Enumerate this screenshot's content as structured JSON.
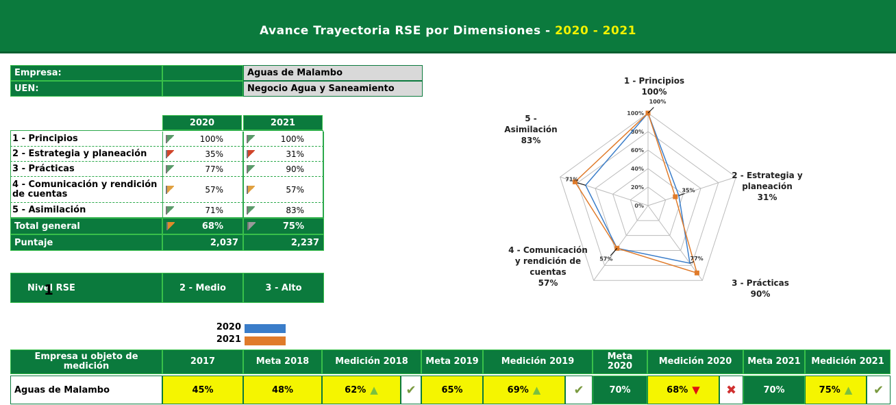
{
  "header": {
    "title": "Avance Trayectoria RSE por Dimensiones -",
    "years": "2020 - 2021"
  },
  "info": {
    "rows": [
      [
        "Empresa:",
        "Aguas de Malambo"
      ],
      [
        "UEN:",
        "Negocio Agua y Saneamiento"
      ]
    ]
  },
  "dimensions": {
    "columns": [
      "2020",
      "2021"
    ],
    "rows": [
      [
        "1 - Principios",
        "100%",
        "100%"
      ],
      [
        "2 - Estrategia y planeación",
        "35%",
        "31%"
      ],
      [
        "3 - Prácticas",
        "77%",
        "90%"
      ],
      [
        "4 - Comunicación y rendición de cuentas",
        "57%",
        "57%"
      ],
      [
        "5 - Asimilación",
        "71%",
        "83%"
      ]
    ],
    "total": [
      "Total general",
      "68%",
      "75%"
    ],
    "score": [
      "Puntaje",
      "2,037",
      "2,237"
    ]
  },
  "level": {
    "label": "Nivel RSE",
    "marker": "1",
    "values": [
      "2 - Medio",
      "3 - Alto"
    ]
  },
  "chart_data": {
    "type": "radar",
    "categories": [
      "1 - Principios",
      "2 - Estrategia y planeación",
      "3 - Prácticas",
      "4 - Comunicación y rendición de cuentas",
      "5 - Asimilación"
    ],
    "series": [
      {
        "name": "2020",
        "color": "#3a7dc9",
        "values": [
          100,
          35,
          77,
          57,
          71
        ],
        "value_labels": [
          "100%",
          "35%",
          "77%",
          "57%",
          "71%"
        ]
      },
      {
        "name": "2021",
        "color": "#e07b2a",
        "values": [
          100,
          31,
          90,
          57,
          83
        ],
        "value_labels": [
          "100%",
          "31%",
          "90%",
          "57%",
          "83%"
        ]
      }
    ],
    "ylim": [
      0,
      100
    ],
    "yticks": [
      {
        "value": 0,
        "label": "0%"
      },
      {
        "value": 20,
        "label": "20%"
      },
      {
        "value": 40,
        "label": "40%"
      },
      {
        "value": 60,
        "label": "60%"
      },
      {
        "value": 80,
        "label": "80%"
      },
      {
        "value": 100,
        "label": "100%"
      }
    ]
  },
  "measurement": {
    "headers": [
      "Empresa u objeto de medición",
      "2017",
      "Meta 2018",
      "Medición 2018",
      "Meta 2019",
      "Medición 2019",
      "Meta 2020",
      "Medición 2020",
      "Meta 2021",
      "Medición 2021"
    ],
    "name": "Aguas de Malambo",
    "cells": [
      "45%",
      "48%",
      "62%",
      "65%",
      "69%",
      "70%",
      "68%",
      "70%",
      "75%"
    ]
  }
}
